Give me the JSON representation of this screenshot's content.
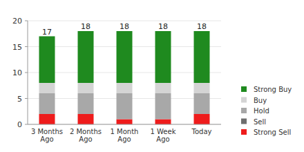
{
  "chart_data": {
    "type": "bar",
    "stacked": true,
    "grid": true,
    "legend": "right",
    "categories": [
      "3 Months Ago",
      "2 Months Ago",
      "1 Month Ago",
      "1 Week Ago",
      "Today"
    ],
    "series": [
      {
        "name": "Strong Sell",
        "color": "#ee1c1c",
        "values": [
          2,
          2,
          1,
          1,
          2
        ]
      },
      {
        "name": "Sell",
        "color": "#6e6e6e",
        "values": [
          0,
          0,
          0,
          0,
          0
        ]
      },
      {
        "name": "Hold",
        "color": "#a8a8a8",
        "values": [
          4,
          4,
          5,
          5,
          4
        ]
      },
      {
        "name": "Buy",
        "color": "#d4d4d4",
        "values": [
          2,
          2,
          2,
          2,
          2
        ]
      },
      {
        "name": "Strong Buy",
        "color": "#1f8a1f",
        "values": [
          9,
          10,
          10,
          10,
          10
        ]
      }
    ],
    "totals": [
      17,
      18,
      18,
      18,
      18
    ],
    "ylim": [
      0,
      20
    ],
    "yticks": [
      0,
      5,
      10,
      15,
      20
    ]
  }
}
